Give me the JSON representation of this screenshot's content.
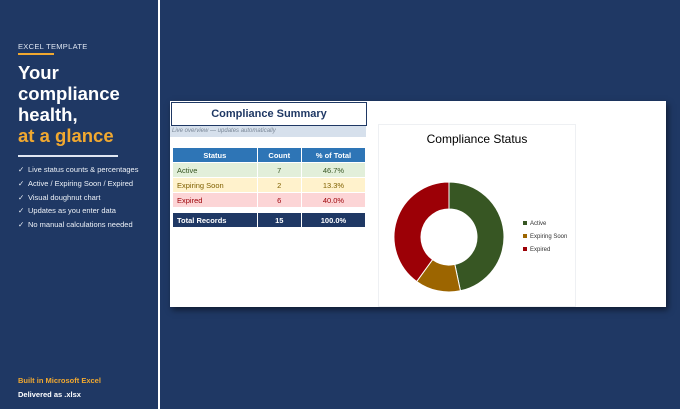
{
  "left": {
    "eyebrow": "EXCEL TEMPLATE",
    "headline_lines": [
      "Your",
      "compliance",
      "health,"
    ],
    "headline_accent": "at a glance",
    "features": [
      "Live status counts & percentages",
      "Active / Expiring Soon / Expired",
      "Visual doughnut chart",
      "Updates as you enter data",
      "No manual calculations needed"
    ],
    "footer_line1": "Built in Microsoft Excel",
    "footer_line2": "Delivered as .xlsx"
  },
  "summary": {
    "title": "Compliance Summary",
    "subtitle": "Live overview — updates automatically",
    "headers": [
      "Status",
      "Count",
      "% of Total"
    ],
    "rows": [
      {
        "status": "Active",
        "count": "7",
        "pct": "46.7%"
      },
      {
        "status": "Expiring Soon",
        "count": "2",
        "pct": "13.3%"
      },
      {
        "status": "Expired",
        "count": "6",
        "pct": "40.0%"
      }
    ],
    "total": {
      "label": "Total Records",
      "count": "15",
      "pct": "100.0%"
    }
  },
  "chart_data": {
    "type": "pie",
    "title": "Compliance Status",
    "categories": [
      "Active",
      "Expiring Soon",
      "Expired"
    ],
    "values": [
      7,
      2,
      6
    ],
    "colors": [
      "#375623",
      "#9c6500",
      "#9c0006"
    ],
    "legend": "right"
  },
  "colors": {
    "navy": "#1f3864",
    "accent": "#f0a830",
    "header_blue": "#2e75b6"
  }
}
